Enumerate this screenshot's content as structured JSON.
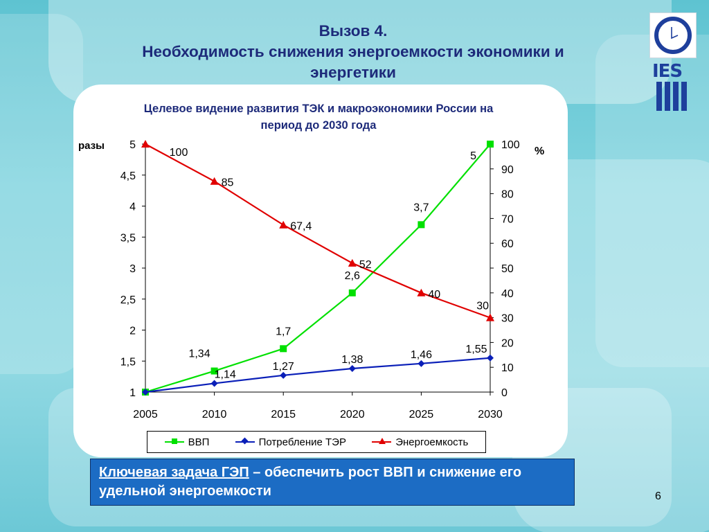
{
  "slide": {
    "title_line1": "Вызов 4.",
    "title_line2": "Необходимость снижения энергоемкости экономики и",
    "title_line3": "энергетики",
    "page_number": "6",
    "logo_text": "IES"
  },
  "callout": {
    "key": "Ключевая задача ГЭП",
    "rest": " – обеспечить рост ВВП и снижение его удельной энергоемкости"
  },
  "chart_data": {
    "type": "line",
    "title_line1": "Целевое видение развития ТЭК и макроэкономики России на",
    "title_line2": "период до 2030 года",
    "x": [
      "2005",
      "2010",
      "2015",
      "2020",
      "2025",
      "2030"
    ],
    "ylabel_left": "разы",
    "ylabel_right": "%",
    "ylim_left": [
      1,
      5
    ],
    "ylim_right": [
      0,
      100
    ],
    "yticks_left": [
      "1",
      "1,5",
      "2",
      "2,5",
      "3",
      "3,5",
      "4",
      "4,5",
      "5"
    ],
    "yticks_right": [
      "0",
      "10",
      "20",
      "30",
      "40",
      "50",
      "60",
      "70",
      "80",
      "90",
      "100"
    ],
    "grid": false,
    "legend": "bottom",
    "series": [
      {
        "name": "ВВП",
        "axis": "left",
        "color": "#00e000",
        "marker": "square",
        "values": [
          1,
          1.34,
          1.7,
          2.6,
          3.7,
          5
        ],
        "labels": [
          "",
          "1,34",
          "1,7",
          "2,6",
          "3,7",
          "5"
        ]
      },
      {
        "name": "Потребление ТЭР",
        "axis": "left",
        "color": "#0a1fb8",
        "marker": "diamond",
        "values": [
          1,
          1.14,
          1.27,
          1.38,
          1.46,
          1.55
        ],
        "labels": [
          "",
          "1,14",
          "1,27",
          "1,38",
          "1,46",
          "1,55"
        ]
      },
      {
        "name": "Энергоемкость",
        "axis": "right",
        "color": "#e00000",
        "marker": "triangle",
        "values": [
          100,
          85,
          67.4,
          52,
          40,
          30
        ],
        "labels": [
          "100",
          "85",
          "67,4",
          "52",
          "40",
          "30"
        ]
      }
    ]
  }
}
